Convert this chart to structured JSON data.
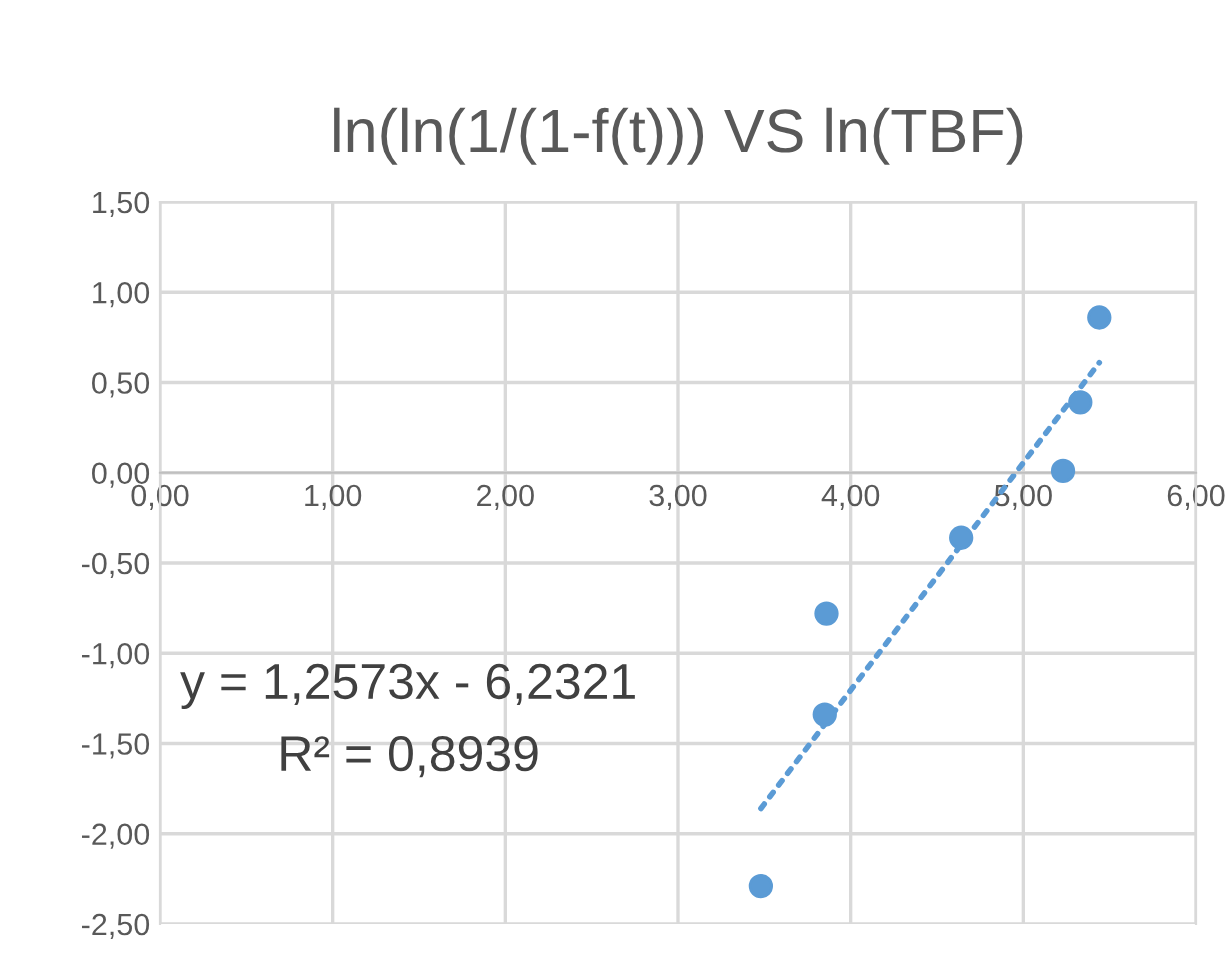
{
  "chart_data": {
    "type": "scatter",
    "title": "ln(ln(1/(1-f(t))) VS ln(TBF)",
    "x": [
      3.48,
      3.85,
      3.86,
      4.64,
      5.23,
      5.33,
      5.44
    ],
    "series": [
      {
        "color": "#5b9bd5",
        "values": [
          -2.29,
          -1.34,
          -0.78,
          -0.36,
          0.01,
          0.39,
          0.86
        ]
      },
      {
        "type": "line",
        "color": "#5b9bd5",
        "line_style": "dotted",
        "marker": "none",
        "x": [
          3.48,
          5.44
        ],
        "values": [
          -1.86,
          0.61
        ]
      }
    ],
    "xlim": [
      0,
      6
    ],
    "xticks": [
      {
        "value": 0,
        "label": "0,00"
      },
      {
        "value": 1,
        "label": "1,00"
      },
      {
        "value": 2,
        "label": "2,00"
      },
      {
        "value": 3,
        "label": "3,00"
      },
      {
        "value": 4,
        "label": "4,00"
      },
      {
        "value": 5,
        "label": "5,00"
      },
      {
        "value": 6,
        "label": "6,00"
      }
    ],
    "ylim": [
      -2.5,
      1.5
    ],
    "yticks": [
      {
        "value": -2.5,
        "label": "-2,50"
      },
      {
        "value": -2,
        "label": "-2,00"
      },
      {
        "value": -1.5,
        "label": "-1,50"
      },
      {
        "value": -1,
        "label": "-1,00"
      },
      {
        "value": -0.5,
        "label": "-0,50"
      },
      {
        "value": 0,
        "label": "0,00"
      },
      {
        "value": 0.5,
        "label": "0,50"
      },
      {
        "value": 1,
        "label": "1,00"
      },
      {
        "value": 1.5,
        "label": "1,50"
      }
    ],
    "grid": true,
    "marker": "circle",
    "annotations": [
      "y = 1,2573x - 6,2321",
      "R² = 0,8939"
    ]
  }
}
